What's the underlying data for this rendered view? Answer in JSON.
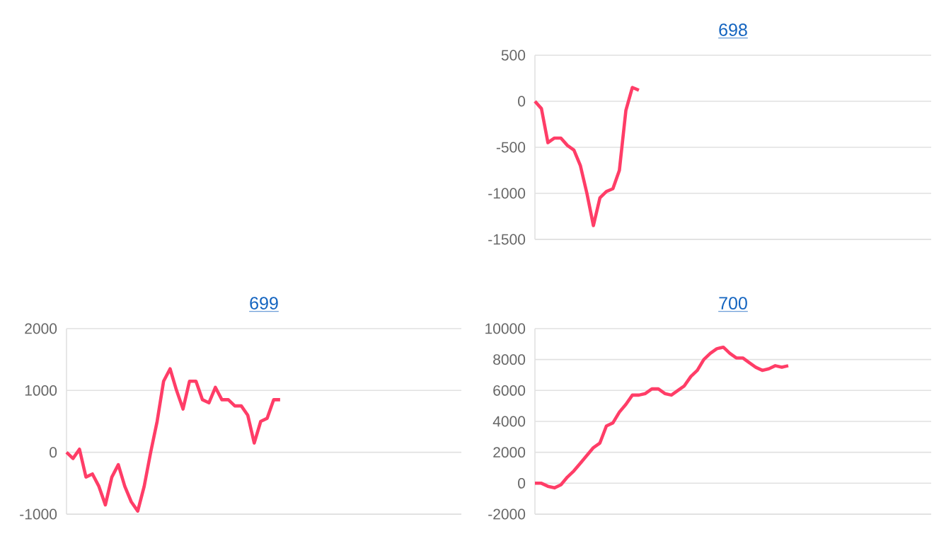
{
  "chart_data": [
    {
      "type": "line",
      "title": "698",
      "categories": [
        null,
        null,
        null,
        null,
        null,
        null,
        null,
        null,
        null,
        null,
        null,
        null,
        null,
        null,
        null,
        null,
        null,
        null,
        null,
        null,
        null,
        null,
        null,
        null,
        null,
        null,
        null,
        null,
        null,
        null,
        null,
        null,
        null,
        null,
        null,
        null,
        null,
        null,
        null,
        null,
        null,
        null,
        null,
        null,
        null,
        null,
        null,
        null,
        null,
        null,
        null,
        null,
        null,
        null,
        null,
        null,
        null,
        null,
        null,
        null,
        null,
        null
      ],
      "values": [
        0,
        -80,
        -450,
        -400,
        -400,
        -480,
        -530,
        -700,
        -1000,
        -1350,
        -1050,
        -980,
        -950,
        -750,
        -100,
        150,
        120,
        null,
        null,
        null,
        null,
        null,
        null,
        null,
        null,
        null,
        null,
        null,
        null,
        null,
        null,
        null,
        null,
        null,
        null,
        null,
        null,
        null,
        null,
        null,
        null,
        null,
        null,
        null,
        null,
        null,
        null,
        null,
        null,
        null,
        null,
        null,
        null,
        null,
        null,
        null,
        null,
        null,
        null,
        null,
        null,
        null
      ],
      "color": "#ff3d67",
      "ylim": [
        -1500,
        500
      ],
      "yticks": [
        -1500,
        -1000,
        -500,
        0,
        500
      ],
      "grid": "y",
      "tick_labels": "y",
      "marker": "none"
    },
    {
      "type": "line",
      "title": "699",
      "categories": [
        null,
        null,
        null,
        null,
        null,
        null,
        null,
        null,
        null,
        null,
        null,
        null,
        null,
        null,
        null,
        null,
        null,
        null,
        null,
        null,
        null,
        null,
        null,
        null,
        null,
        null,
        null,
        null,
        null,
        null,
        null,
        null,
        null,
        null,
        null,
        null,
        null,
        null,
        null,
        null,
        null,
        null,
        null,
        null,
        null,
        null,
        null,
        null,
        null,
        null,
        null,
        null,
        null,
        null,
        null,
        null,
        null,
        null,
        null,
        null,
        null,
        null
      ],
      "values": [
        0,
        -100,
        50,
        -400,
        -350,
        -550,
        -850,
        -400,
        -200,
        -550,
        -800,
        -950,
        -550,
        0,
        500,
        1150,
        1350,
        1000,
        700,
        1150,
        1150,
        850,
        800,
        1050,
        850,
        850,
        750,
        750,
        600,
        150,
        500,
        550,
        850,
        850,
        null,
        null,
        null,
        null,
        null,
        null,
        null,
        null,
        null,
        null,
        null,
        null,
        null,
        null,
        null,
        null,
        null,
        null,
        null,
        null,
        null,
        null,
        null,
        null,
        null,
        null,
        null,
        null
      ],
      "color": "#ff3d67",
      "ylim": [
        -1000,
        2000
      ],
      "yticks": [
        -1000,
        0,
        1000,
        2000
      ],
      "grid": "y",
      "tick_labels": "y",
      "marker": "none"
    },
    {
      "type": "line",
      "title": "700",
      "categories": [
        null,
        null,
        null,
        null,
        null,
        null,
        null,
        null,
        null,
        null,
        null,
        null,
        null,
        null,
        null,
        null,
        null,
        null,
        null,
        null,
        null,
        null,
        null,
        null,
        null,
        null,
        null,
        null,
        null,
        null,
        null,
        null,
        null,
        null,
        null,
        null,
        null,
        null,
        null,
        null,
        null,
        null,
        null,
        null,
        null,
        null,
        null,
        null,
        null,
        null,
        null,
        null,
        null,
        null,
        null,
        null,
        null,
        null,
        null,
        null,
        null,
        null
      ],
      "values": [
        0,
        0,
        -200,
        -300,
        -100,
        400,
        800,
        1300,
        1800,
        2300,
        2600,
        3700,
        3900,
        4600,
        5100,
        5700,
        5700,
        5800,
        6100,
        6100,
        5800,
        5700,
        6000,
        6300,
        6900,
        7300,
        8000,
        8400,
        8700,
        8800,
        8400,
        8100,
        8100,
        7800,
        7500,
        7300,
        7400,
        7600,
        7500,
        7600,
        null,
        null,
        null,
        null,
        null,
        null,
        null,
        null,
        null,
        null,
        null,
        null,
        null,
        null,
        null,
        null,
        null,
        null,
        null,
        null,
        null,
        null
      ],
      "color": "#ff3d67",
      "ylim": [
        -2000,
        10000
      ],
      "yticks": [
        -2000,
        0,
        2000,
        4000,
        6000,
        8000,
        10000
      ],
      "grid": "y",
      "tick_labels": "y",
      "marker": "none"
    }
  ]
}
